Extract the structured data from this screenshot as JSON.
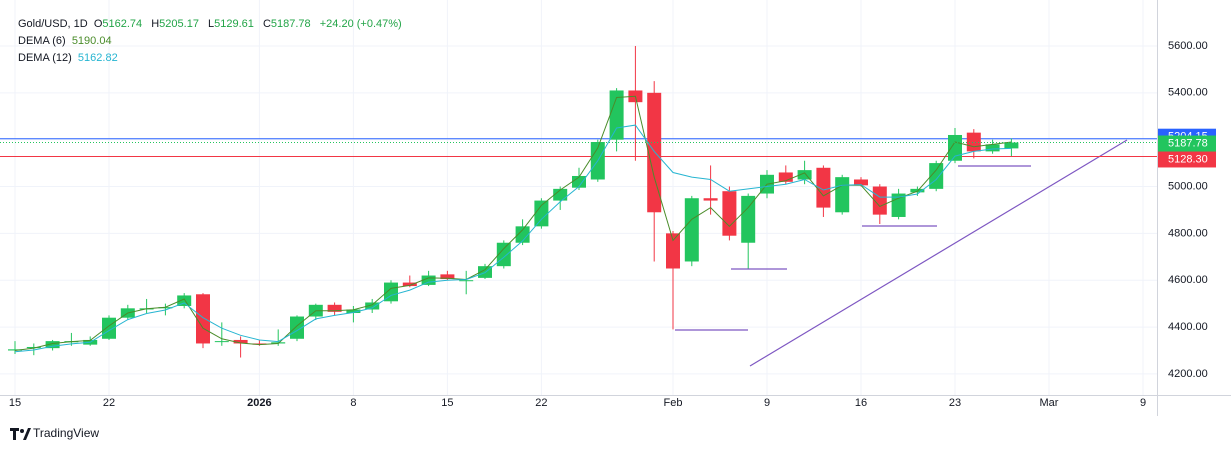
{
  "chart_data": {
    "type": "candlestick",
    "title": "Gold/USD, 1D",
    "ohlc_labels": [
      "O",
      "H",
      "L",
      "C"
    ],
    "change": "+24.20 (+0.47%)",
    "footer": "TradingView",
    "categories": [
      "15",
      null,
      null,
      null,
      null,
      "22",
      null,
      null,
      null,
      null,
      null,
      null,
      null,
      "2026",
      null,
      null,
      null,
      null,
      "8",
      null,
      null,
      null,
      null,
      "15",
      null,
      null,
      null,
      null,
      "22",
      null,
      null,
      null,
      null,
      null,
      null,
      "Feb",
      null,
      null,
      null,
      null,
      "9",
      null,
      null,
      null,
      null,
      "16",
      null,
      null,
      null,
      null,
      "23",
      null,
      null,
      null,
      null,
      "Mar",
      null,
      null,
      null,
      null,
      "9"
    ],
    "open": [
      4300,
      4310,
      4310,
      4335,
      4325,
      4350,
      4440,
      4475,
      4480,
      4490,
      4540,
      4340,
      4345,
      4330,
      4330,
      4350,
      4445,
      4495,
      4460,
      4475,
      4510,
      4590,
      4580,
      4625,
      4600,
      4610,
      4660,
      4760,
      4830,
      4940,
      4995,
      5030,
      5200,
      5410,
      5400,
      4800,
      4680,
      4950,
      4980,
      4760,
      4970,
      5060,
      5030,
      5080,
      4890,
      5030,
      5000,
      4870,
      4975,
      4990,
      5110,
      5230,
      5150,
      5162.74,
      null,
      null,
      null,
      null,
      null,
      null,
      null
    ],
    "high": [
      4340,
      4330,
      4345,
      4375,
      4360,
      4450,
      4495,
      4520,
      4500,
      4545,
      4545,
      4420,
      4360,
      4345,
      4390,
      4450,
      4500,
      4505,
      4490,
      4520,
      4600,
      4620,
      4640,
      4640,
      4640,
      4670,
      4770,
      4860,
      4950,
      5000,
      5080,
      5200,
      5420,
      5600,
      5450,
      4810,
      4960,
      5090,
      5000,
      4970,
      5070,
      5090,
      5110,
      5090,
      5050,
      5040,
      5010,
      4990,
      5000,
      5110,
      5250,
      5245,
      5200,
      5205.17,
      null,
      null,
      null,
      null,
      null,
      null,
      null
    ],
    "low": [
      4285,
      4280,
      4300,
      4320,
      4320,
      4345,
      4430,
      4460,
      4450,
      4480,
      4310,
      4320,
      4270,
      4320,
      4320,
      4340,
      4430,
      4450,
      4420,
      4460,
      4500,
      4570,
      4575,
      4600,
      4540,
      4605,
      4650,
      4750,
      4820,
      4900,
      4985,
      5020,
      5150,
      5110,
      4680,
      4390,
      4660,
      4880,
      4770,
      4650,
      4950,
      5010,
      5010,
      4870,
      4880,
      5000,
      4840,
      4860,
      4960,
      4980,
      5100,
      5120,
      5140,
      5129.61,
      null,
      null,
      null,
      null,
      null,
      null,
      null
    ],
    "close": [
      4305,
      4315,
      4340,
      4340,
      4345,
      4440,
      4480,
      4480,
      4485,
      4535,
      4330,
      4340,
      4330,
      4325,
      4335,
      4445,
      4495,
      4465,
      4475,
      4505,
      4590,
      4575,
      4620,
      4605,
      4600,
      4660,
      4760,
      4830,
      4940,
      4990,
      5045,
      5190,
      5410,
      5360,
      4890,
      4650,
      4950,
      4940,
      4790,
      4960,
      5050,
      5020,
      5070,
      4910,
      5040,
      5005,
      4880,
      4970,
      4990,
      5100,
      5220,
      5150,
      5180,
      5187.78,
      null,
      null,
      null,
      null,
      null,
      null,
      null
    ],
    "up_color": "#22c55e",
    "down_color": "#f23645",
    "series": [
      {
        "name": "DEMA (6)",
        "color": "#4a8c2a",
        "values": [
          4300,
          4310,
          4330,
          4338,
          4343,
          4405,
          4460,
          4478,
          4485,
          4520,
          4395,
          4350,
          4332,
          4325,
          4330,
          4405,
          4470,
          4470,
          4474,
          4495,
          4565,
          4578,
          4610,
          4608,
          4603,
          4645,
          4735,
          4815,
          4920,
          4985,
          5040,
          5165,
          5380,
          5385,
          5040,
          4770,
          4860,
          4910,
          4830,
          4910,
          5010,
          5025,
          5058,
          4960,
          5005,
          5005,
          4915,
          4950,
          4980,
          5070,
          5190,
          5170,
          5180,
          5190.04,
          null,
          null,
          null,
          null,
          null,
          null,
          null
        ]
      },
      {
        "name": "DEMA (12)",
        "color": "#26b5d1",
        "values": [
          4295,
          4302,
          4318,
          4328,
          4335,
          4385,
          4432,
          4458,
          4473,
          4503,
          4440,
          4395,
          4365,
          4345,
          4338,
          4385,
          4435,
          4450,
          4462,
          4482,
          4535,
          4558,
          4592,
          4600,
          4603,
          4632,
          4698,
          4768,
          4860,
          4935,
          5000,
          5110,
          5250,
          5262,
          5150,
          5060,
          5040,
          5030,
          4980,
          4990,
          5000,
          5010,
          5030,
          4985,
          5005,
          5008,
          4955,
          4955,
          4968,
          5030,
          5130,
          5150,
          5160,
          5162.82,
          null,
          null,
          null,
          null,
          null,
          null,
          null
        ]
      }
    ],
    "price_lines": [
      {
        "value": 5204.15,
        "color": "#2962ff"
      },
      {
        "value": 5128.3,
        "label": "5128.30",
        "color": "#f23645"
      }
    ],
    "ylim": [
      4110,
      5745
    ],
    "yticks": [
      {
        "value": 4200,
        "label": "4200.00"
      },
      {
        "value": 4400,
        "label": "4400.00"
      },
      {
        "value": 4600,
        "label": "4600.00"
      },
      {
        "value": 4800,
        "label": "4800.00"
      },
      {
        "value": 5000,
        "label": "5000.00"
      },
      {
        "value": 5200,
        "label": "5200.00"
      },
      {
        "value": 5400,
        "label": "5400.00"
      },
      {
        "value": 5600,
        "label": "5600.00"
      }
    ],
    "grid": true
  }
}
